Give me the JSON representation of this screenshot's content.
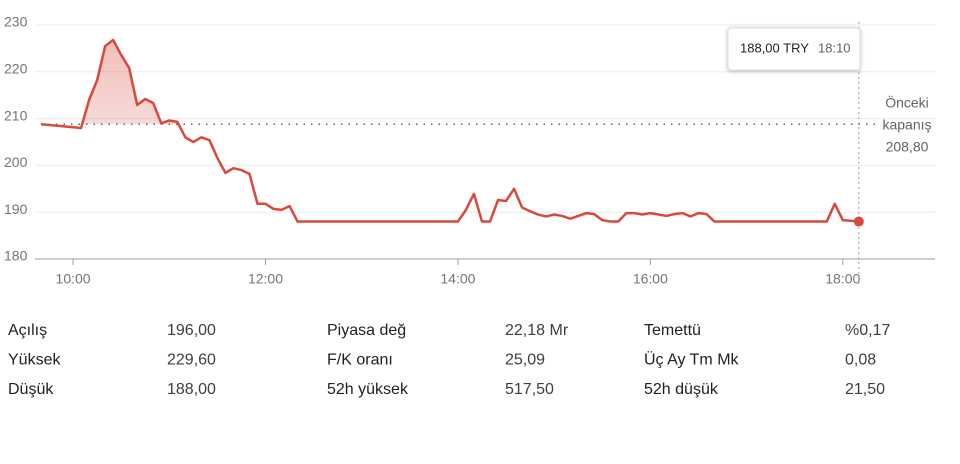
{
  "chart_data": {
    "type": "line",
    "x": [
      580,
      605,
      610,
      615,
      620,
      625,
      630,
      635,
      640,
      645,
      650,
      655,
      660,
      665,
      670,
      675,
      680,
      685,
      690,
      695,
      700,
      705,
      710,
      715,
      720,
      725,
      730,
      735,
      740,
      840,
      845,
      850,
      855,
      860,
      865,
      870,
      875,
      880,
      885,
      890,
      895,
      900,
      905,
      910,
      915,
      920,
      925,
      930,
      935,
      940,
      945,
      950,
      955,
      960,
      965,
      970,
      975,
      980,
      985,
      990,
      995,
      1000,
      1070,
      1075,
      1080,
      1090
    ],
    "series": [
      {
        "color": "#d9483b",
        "values": [
          208.8,
          208,
          214,
          218.2,
          225.5,
          226.8,
          223.6,
          220.8,
          212.9,
          214.2,
          213.3,
          209,
          209.6,
          209.3,
          206,
          205,
          206,
          205.4,
          201.6,
          198.4,
          199.4,
          199,
          198.2,
          191.8,
          191.8,
          190.7,
          190.5,
          191.3,
          188,
          188,
          190.5,
          193.9,
          188,
          188,
          192.6,
          192.4,
          195,
          191,
          190.2,
          189.5,
          189.1,
          189.5,
          189.2,
          188.6,
          189.2,
          189.8,
          189.6,
          188.3,
          188,
          188,
          189.8,
          189.8,
          189.5,
          189.8,
          189.5,
          189.2,
          189.6,
          189.8,
          189.1,
          189.8,
          189.6,
          188,
          188,
          191.8,
          188.3,
          188
        ]
      }
    ],
    "xlim": [
      580,
      1140
    ],
    "xticks": [
      {
        "value": 600,
        "label": "10:00"
      },
      {
        "value": 720,
        "label": "12:00"
      },
      {
        "value": 840,
        "label": "14:00"
      },
      {
        "value": 960,
        "label": "16:00"
      },
      {
        "value": 1080,
        "label": "18:00"
      }
    ],
    "ylim": [
      180,
      230
    ],
    "yticks": [
      180,
      190,
      200,
      210,
      220,
      230
    ],
    "grid": true,
    "reference": {
      "value": 208.8,
      "label": "208,80",
      "text": [
        "Önceki",
        "kapanış"
      ]
    },
    "tooltip": {
      "value": 188,
      "label": "188,00 TRY",
      "time": {
        "value": 1090,
        "label": "18:10"
      }
    }
  },
  "stats": {
    "columns": [
      [
        {
          "label": "Açılış",
          "value": "196,00"
        },
        {
          "label": "Yüksek",
          "value": "229,60"
        },
        {
          "label": "Düşük",
          "value": "188,00"
        }
      ],
      [
        {
          "label": "Piyasa değ",
          "value": "22,18 Mr"
        },
        {
          "label": "F/K oranı",
          "value": "25,09"
        },
        {
          "label": "52h yüksek",
          "value": "517,50"
        }
      ],
      [
        {
          "label": "Temettü",
          "value": "%0,17"
        },
        {
          "label": "Üç Ay Tm Mk",
          "value": "0,08"
        },
        {
          "label": "52h düşük",
          "value": "21,50"
        }
      ]
    ]
  }
}
